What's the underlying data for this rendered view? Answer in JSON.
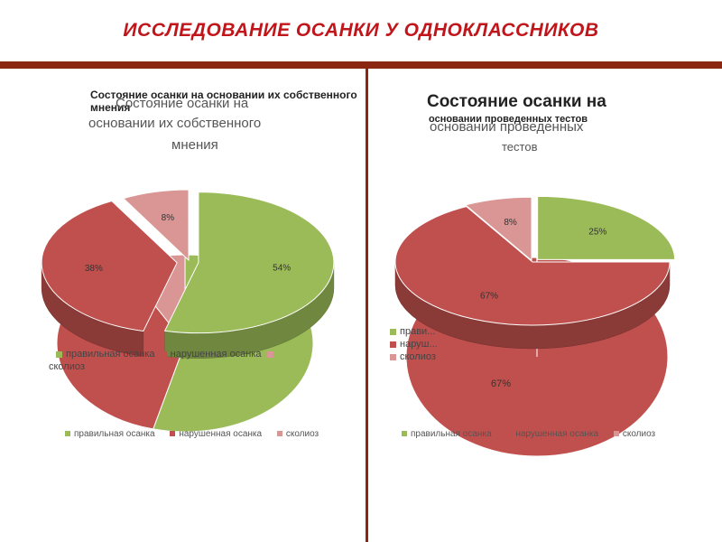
{
  "slide": {
    "title": "ИССЛЕДОВАНИЕ ОСАНКИ У ОДНОКЛАССНИКОВ"
  },
  "colors": {
    "green": "#9bbb59",
    "red": "#c0504d",
    "pink": "#d99694",
    "accent": "#8b2610",
    "title": "#c0161b"
  },
  "charts": {
    "left": {
      "title_overlay": "Состояние осанки на основании их собственного мнения",
      "title_line1": "Состояние осанки на",
      "title_line2": "основании их собственного",
      "title_line3": "мнения",
      "legend_inline": [
        "правильная осанка",
        "нарушенная осанка",
        "сколиоз"
      ],
      "legend_bottom": [
        "правильная осанка",
        "нарушенная осанка",
        "сколиоз"
      ]
    },
    "right": {
      "title_big": "Состояние осанки на",
      "title_overlay": "основании проведенных тестов",
      "title_line2": "основании проведенных",
      "title_line3": "тестов",
      "legend_inline": [
        "прави...",
        "наруш...",
        "сколиоз"
      ],
      "legend_bottom": [
        "правильная осанка",
        "нарушенная осанка",
        "сколиоз"
      ],
      "extra_label": "67%"
    }
  },
  "chart_data": [
    {
      "type": "pie",
      "title": "Состояние осанки на основании их собственного мнения",
      "categories": [
        "правильная осанка",
        "нарушенная осанка",
        "сколиоз"
      ],
      "values": [
        54,
        38,
        8
      ],
      "labels": [
        "54%",
        "38%",
        "8%"
      ],
      "legend": "bottom"
    },
    {
      "type": "pie",
      "title": "Состояние осанки на основании проведенных тестов",
      "categories": [
        "правильная осанка",
        "нарушенная осанка",
        "сколиоз"
      ],
      "values": [
        25,
        67,
        8
      ],
      "labels": [
        "25%",
        "67%",
        "8%"
      ],
      "legend": "bottom"
    }
  ]
}
